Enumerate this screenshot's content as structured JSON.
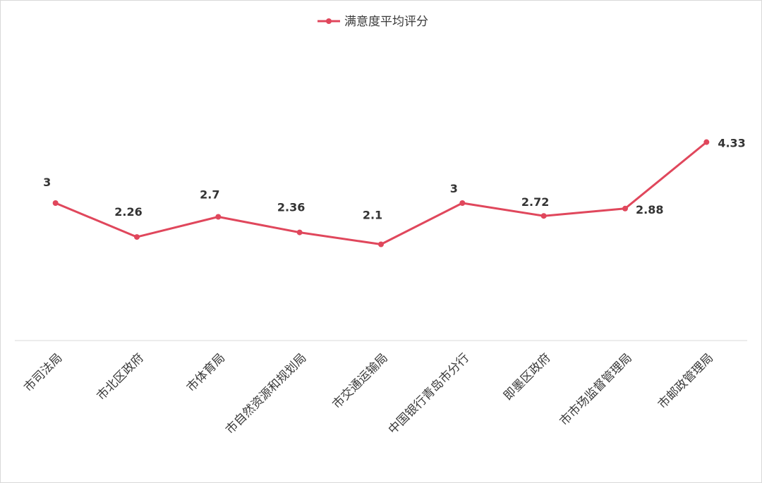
{
  "chart_data": {
    "type": "line",
    "categories": [
      "市司法局",
      "市北区政府",
      "市体育局",
      "市自然资源和规划局",
      "市交通运输局",
      "中国银行青岛市分行",
      "即墨区政府",
      "市市场监督管理局",
      "市邮政管理局"
    ],
    "series": [
      {
        "name": "满意度平均评分",
        "values": [
          3,
          2.26,
          2.7,
          2.36,
          2.1,
          3,
          2.72,
          2.88,
          4.33
        ],
        "color": "#e0475c"
      }
    ],
    "value_labels": [
      "3",
      "2.26",
      "2.7",
      "2.36",
      "2.1",
      "3",
      "2.72",
      "2.88",
      "4.33"
    ],
    "ylim": [
      0,
      6
    ],
    "grid": false,
    "legend_position": "top-center",
    "title": "",
    "xlabel": "",
    "ylabel": ""
  }
}
